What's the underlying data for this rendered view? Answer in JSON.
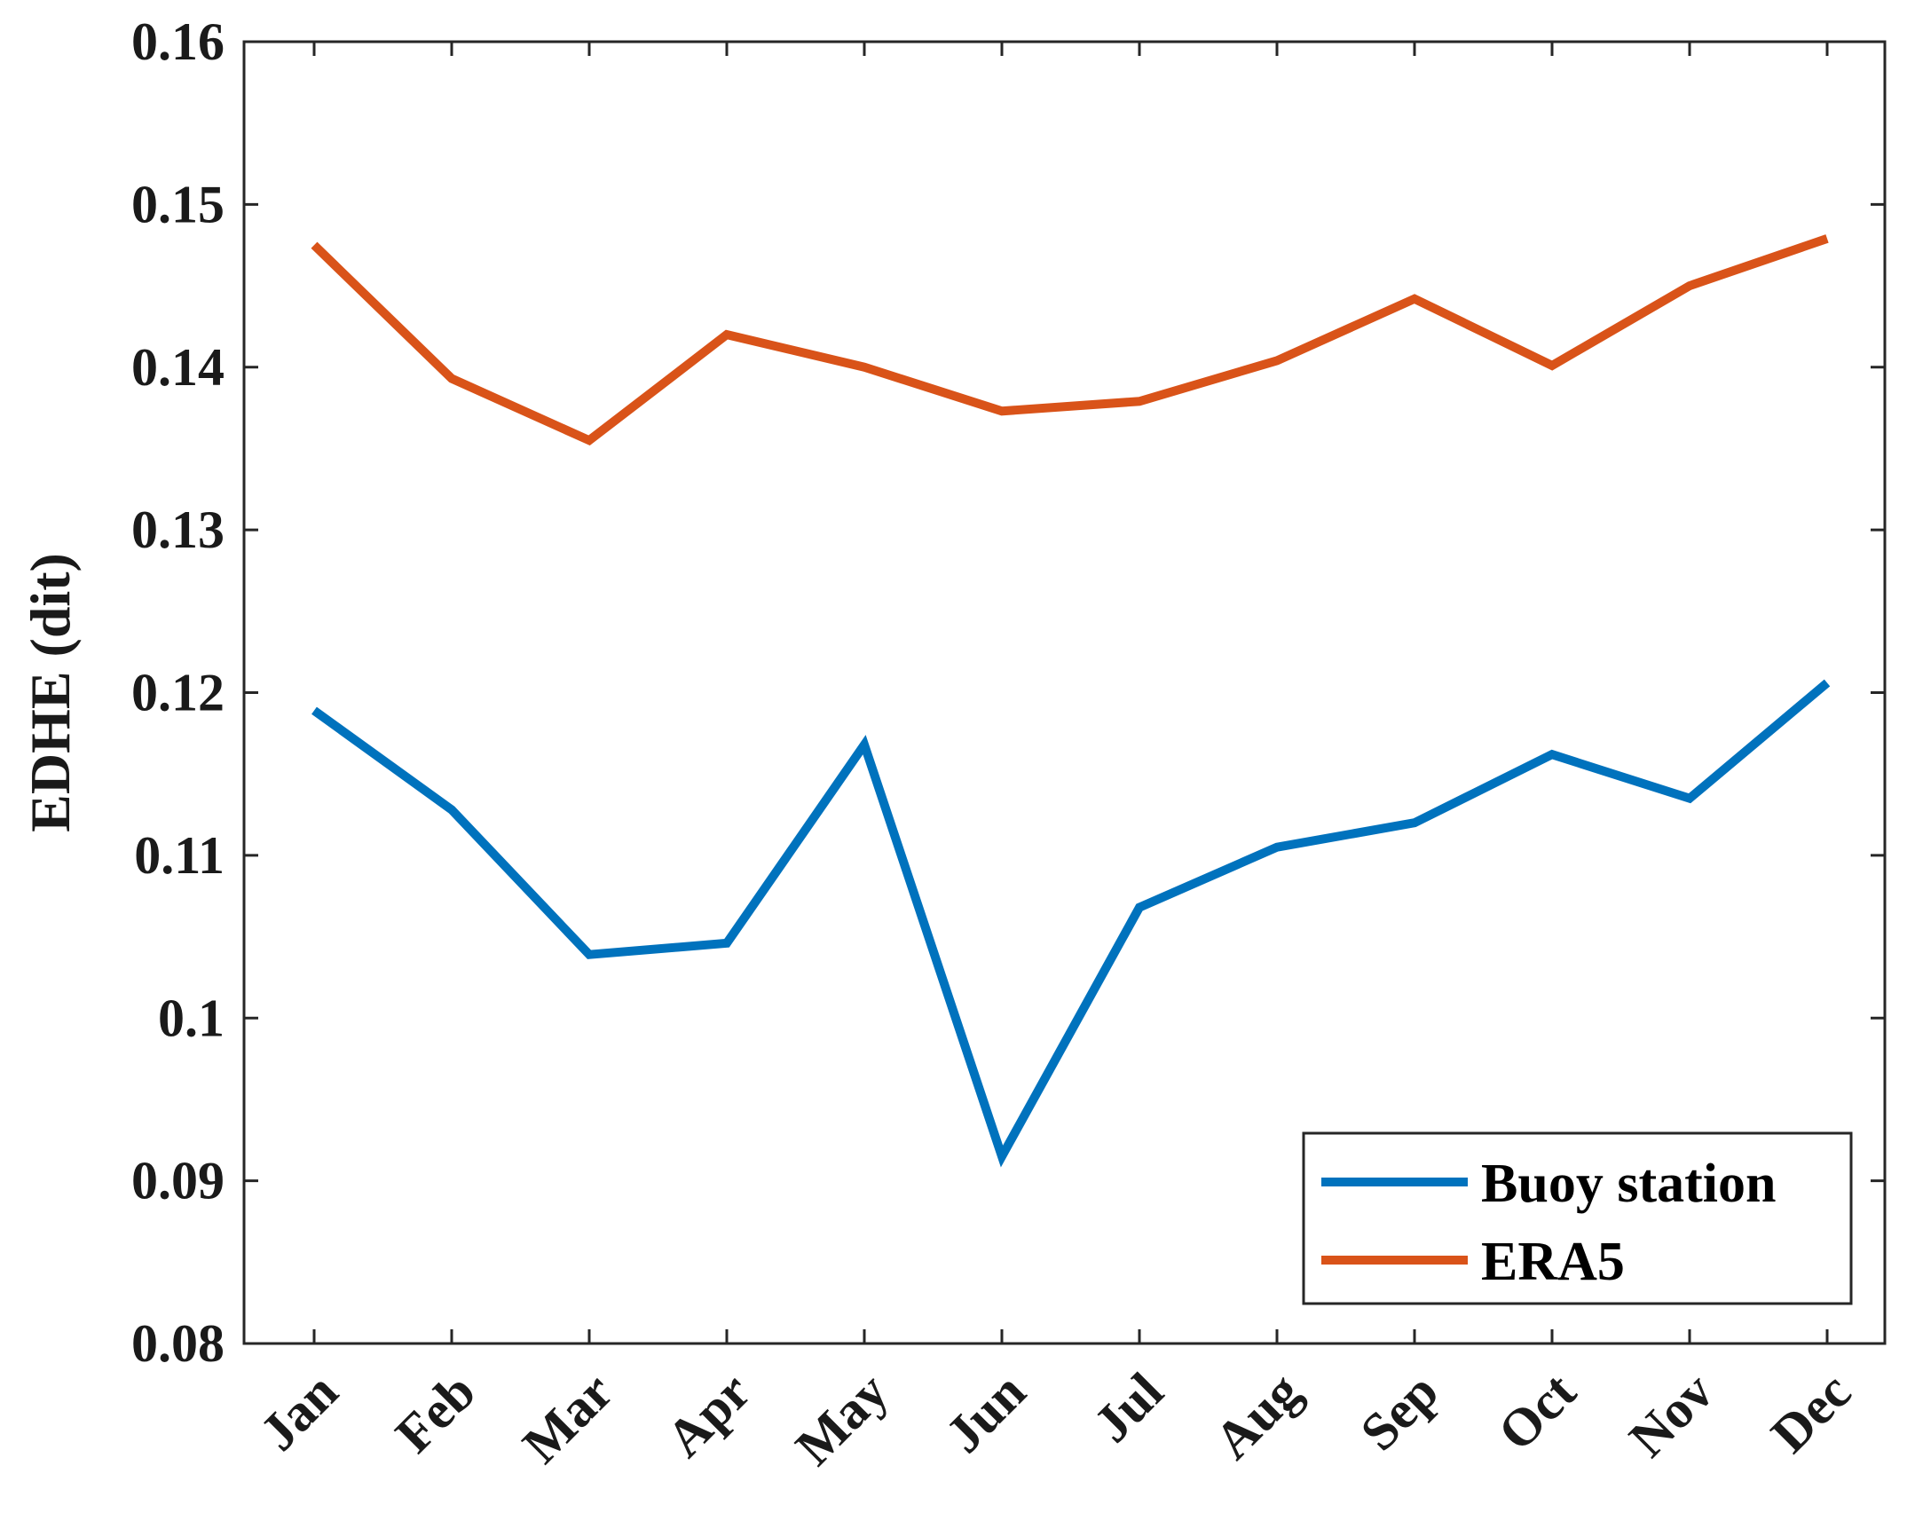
{
  "chart_data": {
    "type": "line",
    "categories": [
      "Jan",
      "Feb",
      "Mar",
      "Apr",
      "May",
      "Jun",
      "Jul",
      "Aug",
      "Sep",
      "Oct",
      "Nov",
      "Dec"
    ],
    "series": [
      {
        "name": "Buoy station",
        "color": "#0072BD",
        "values": [
          0.1189,
          0.1128,
          0.1039,
          0.1046,
          0.1168,
          0.0915,
          0.1068,
          0.1105,
          0.112,
          0.1162,
          0.1135,
          0.1206
        ]
      },
      {
        "name": "ERA5",
        "color": "#D95319",
        "values": [
          0.1475,
          0.1393,
          0.1355,
          0.142,
          0.14,
          0.1373,
          0.1379,
          0.1404,
          0.1442,
          0.1401,
          0.145,
          0.1479
        ]
      }
    ],
    "ylabel": "EDHE (dit)",
    "xlabel": "",
    "ylim": [
      0.08,
      0.16
    ],
    "yticks": [
      "0.08",
      "0.09",
      "0.1",
      "0.11",
      "0.12",
      "0.13",
      "0.14",
      "0.15",
      "0.16"
    ],
    "grid": false,
    "legend_position": "bottom-right"
  }
}
